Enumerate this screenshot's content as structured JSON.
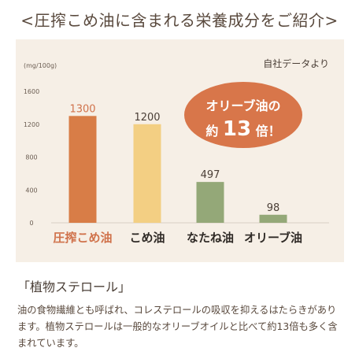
{
  "heading": "<圧搾こめ油に含まれる栄養成分をご紹介>",
  "chart_data": {
    "type": "bar",
    "unit_label": "(mg/100g)",
    "source_note": "自社データより",
    "categories": [
      "圧搾こめ油",
      "こめ油",
      "なたね油",
      "オリーブ油"
    ],
    "values": [
      1300,
      1200,
      497,
      98
    ],
    "value_labels": [
      "1300",
      "1200",
      "497",
      "98"
    ],
    "ylim": [
      0,
      1600
    ],
    "yticks": [
      0,
      400,
      800,
      1200,
      1600
    ],
    "ytick_labels": [
      "0",
      "400",
      "800",
      "1200",
      "1600"
    ],
    "colors": [
      "#d87d47",
      "#f3cf83",
      "#94a878",
      "#94a878"
    ],
    "label_colors": [
      "#d0724b",
      "#4a3e36",
      "#4a3e36",
      "#4a3e36"
    ],
    "category_colors": [
      "#d0724b",
      "#2f2a26",
      "#2f2a26",
      "#2f2a26"
    ],
    "grid": false,
    "legend": "none",
    "callout": {
      "line1": "オリーブ油の",
      "prefix": "約",
      "number": "13",
      "suffix": "倍！",
      "color": "#d8764a"
    }
  },
  "section_title": "「植物ステロール」",
  "body_text": "油の食物繊維とも呼ばれ、コレステロールの吸収を抑えるはたらきがあります。植物ステロールは一般的なオリーブオイルと比べて約13倍も多く含まれています。"
}
